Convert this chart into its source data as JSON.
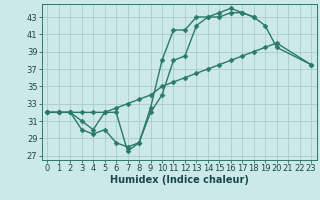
{
  "bg_color": "#cce8e8",
  "grid_color": "#aacccc",
  "line_color": "#2a7a6a",
  "line_width": 1.0,
  "marker": "D",
  "marker_size": 2.5,
  "xlabel": "Humidex (Indice chaleur)",
  "xlabel_fontsize": 7.0,
  "tick_fontsize": 6.0,
  "ylim": [
    26.5,
    44.5
  ],
  "xlim": [
    -0.5,
    23.5
  ],
  "yticks": [
    27,
    29,
    31,
    33,
    35,
    37,
    39,
    41,
    43
  ],
  "xticks": [
    0,
    1,
    2,
    3,
    4,
    5,
    6,
    7,
    8,
    9,
    10,
    11,
    12,
    13,
    14,
    15,
    16,
    17,
    18,
    19,
    20,
    21,
    22,
    23
  ],
  "line1_x": [
    0,
    1,
    2,
    3,
    4,
    5,
    6,
    7,
    8,
    9,
    10,
    11,
    12,
    13,
    14,
    15,
    16,
    17,
    18,
    19,
    20,
    23
  ],
  "line1_y": [
    32,
    32,
    32,
    31,
    30,
    32,
    32,
    27.5,
    28.5,
    32.5,
    38,
    41.5,
    41.5,
    43,
    43,
    43.5,
    44,
    43.5,
    43,
    42,
    39.5,
    37.5
  ],
  "line2_x": [
    0,
    1,
    2,
    3,
    4,
    5,
    6,
    7,
    8,
    9,
    10,
    11,
    12,
    13,
    14,
    15,
    16,
    17,
    18
  ],
  "line2_y": [
    32,
    32,
    32,
    30,
    29.5,
    30,
    28.5,
    28,
    28.5,
    32,
    34,
    38,
    38.5,
    42,
    43,
    43,
    43.5,
    43.5,
    43
  ],
  "line3_x": [
    0,
    1,
    2,
    3,
    4,
    5,
    6,
    7,
    8,
    9,
    10,
    11,
    12,
    13,
    14,
    15,
    16,
    17,
    18,
    19,
    20,
    23
  ],
  "line3_y": [
    32,
    32,
    32,
    32,
    32,
    32,
    32.5,
    33,
    33.5,
    34,
    35,
    35.5,
    36,
    36.5,
    37,
    37.5,
    38,
    38.5,
    39,
    39.5,
    40,
    37.5
  ]
}
